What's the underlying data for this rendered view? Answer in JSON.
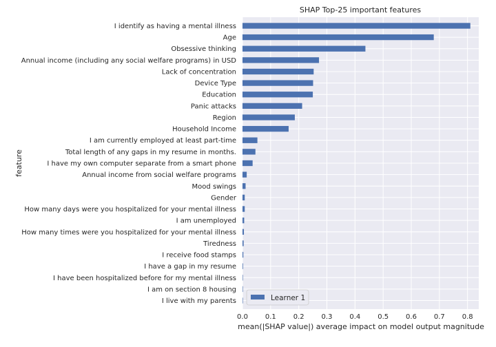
{
  "chart_data": {
    "type": "bar",
    "orientation": "horizontal",
    "title": "SHAP Top-25 important features",
    "xlabel": "mean(|SHAP value|) average impact on model output magnitude",
    "ylabel": "feature",
    "xlim": [
      0,
      0.84
    ],
    "xticks": [
      "0.0",
      "0.1",
      "0.2",
      "0.3",
      "0.4",
      "0.5",
      "0.6",
      "0.7",
      "0.8"
    ],
    "grid": true,
    "legend_placement": "lower-left",
    "categories": [
      "I identify as having a mental illness",
      "Age",
      "Obsessive thinking",
      "Annual income (including any social welfare programs) in USD",
      "Lack of concentration",
      "Device Type",
      "Education",
      "Panic attacks",
      "Region",
      "Household Income",
      "I am currently employed at least part-time",
      "Total length of any gaps in my resume in months.",
      "I have my own computer separate from a smart phone",
      "Annual income from social welfare programs",
      "Mood swings",
      "Gender",
      "How many days were you hospitalized for your mental illness",
      "I am unemployed",
      "How many times were you hospitalized for your mental illness",
      "Tiredness",
      "I receive food stamps",
      "I have a gap in my resume",
      "I have been hospitalized before for my mental illness",
      "I am on section 8 housing",
      "I live with my parents"
    ],
    "series": [
      {
        "name": "Learner 1",
        "color": "#4c72b0",
        "values": [
          0.81,
          0.68,
          0.437,
          0.272,
          0.253,
          0.251,
          0.25,
          0.212,
          0.186,
          0.164,
          0.053,
          0.046,
          0.036,
          0.015,
          0.011,
          0.008,
          0.008,
          0.006,
          0.005,
          0.004,
          0.003,
          0.002,
          0.001,
          0.0005,
          0.0003
        ]
      }
    ]
  }
}
